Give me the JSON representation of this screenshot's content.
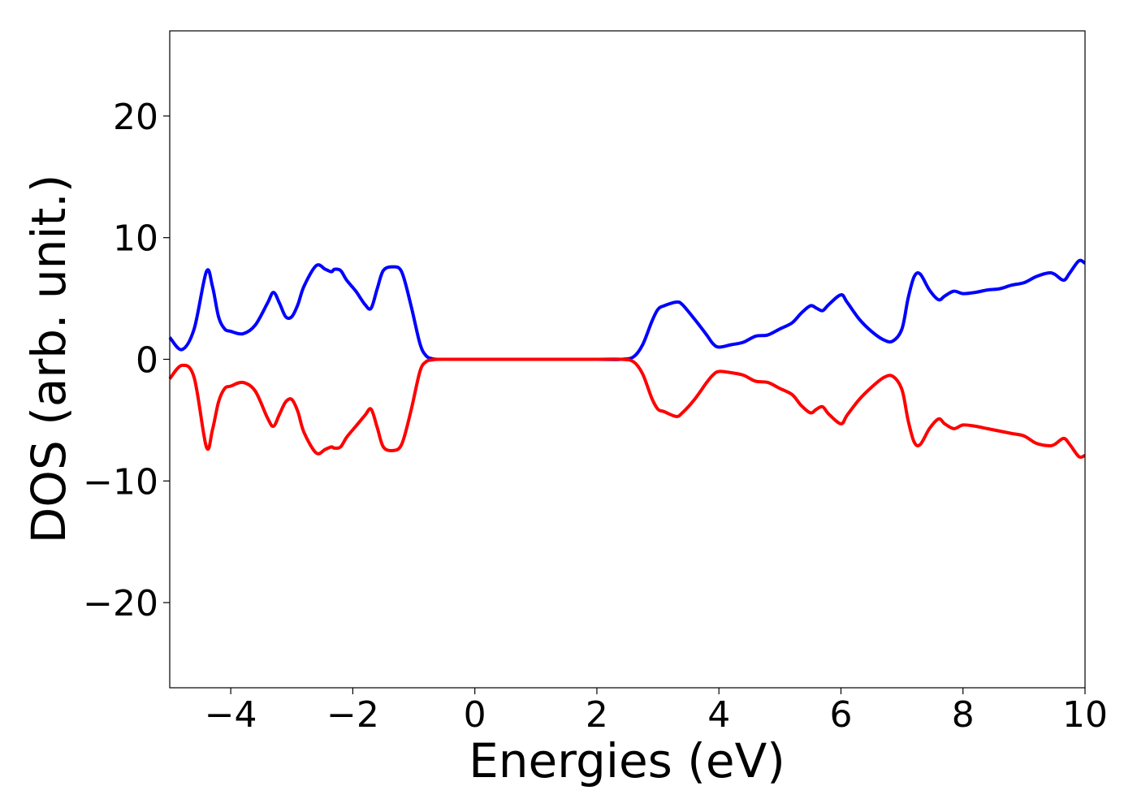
{
  "chart_data": {
    "type": "line",
    "title": "",
    "xlabel": "Energies (eV)",
    "ylabel": "DOS (arb. unit.)",
    "xlim": [
      -5,
      10
    ],
    "ylim": [
      -27,
      27
    ],
    "xticks": [
      -4,
      -2,
      0,
      2,
      4,
      6,
      8,
      10
    ],
    "xtick_labels": [
      "−4",
      "−2",
      "0",
      "2",
      "4",
      "6",
      "8",
      "10"
    ],
    "yticks": [
      -20,
      -10,
      0,
      10,
      20
    ],
    "ytick_labels": [
      "−20",
      "−10",
      "0",
      "10",
      "20"
    ],
    "grid": false,
    "legend": "none",
    "series": [
      {
        "color": "#0000ff",
        "x": [
          -5.0,
          -4.8,
          -4.6,
          -4.4,
          -4.3,
          -4.2,
          -4.1,
          -4.0,
          -3.8,
          -3.6,
          -3.4,
          -3.3,
          -3.2,
          -3.1,
          -3.0,
          -2.9,
          -2.8,
          -2.6,
          -2.45,
          -2.35,
          -2.3,
          -2.2,
          -2.1,
          -1.95,
          -1.8,
          -1.7,
          -1.6,
          -1.5,
          -1.35,
          -1.2,
          -1.05,
          -0.9,
          -0.8,
          -0.7,
          -0.6,
          -0.5,
          -0.4,
          0.0,
          0.5,
          1.0,
          1.5,
          2.0,
          2.4,
          2.6,
          2.75,
          2.9,
          3.0,
          3.1,
          3.3,
          3.4,
          3.6,
          3.8,
          3.9,
          4.0,
          4.2,
          4.4,
          4.6,
          4.8,
          5.0,
          5.2,
          5.35,
          5.5,
          5.6,
          5.7,
          5.8,
          6.0,
          6.1,
          6.3,
          6.5,
          6.7,
          6.85,
          7.0,
          7.1,
          7.2,
          7.3,
          7.45,
          7.6,
          7.7,
          7.85,
          8.0,
          8.2,
          8.4,
          8.6,
          8.8,
          9.0,
          9.2,
          9.4,
          9.5,
          9.65,
          9.75,
          9.9,
          10.0
        ],
        "y": [
          1.8,
          0.8,
          2.5,
          7.2,
          6.0,
          3.5,
          2.5,
          2.3,
          2.1,
          2.8,
          4.6,
          5.5,
          4.6,
          3.5,
          3.5,
          4.5,
          6.0,
          7.7,
          7.4,
          7.2,
          7.4,
          7.3,
          6.5,
          5.6,
          4.5,
          4.2,
          5.8,
          7.3,
          7.6,
          7.2,
          4.5,
          1.3,
          0.3,
          0.05,
          0.0,
          0.0,
          0.0,
          0.0,
          0.0,
          0.0,
          0.0,
          0.0,
          0.0,
          0.2,
          1.2,
          3.1,
          4.1,
          4.4,
          4.7,
          4.5,
          3.3,
          2.0,
          1.3,
          1.0,
          1.2,
          1.4,
          1.9,
          2.0,
          2.5,
          3.0,
          3.8,
          4.4,
          4.2,
          4.0,
          4.5,
          5.3,
          4.7,
          3.3,
          2.3,
          1.6,
          1.5,
          2.5,
          5.0,
          6.8,
          7.0,
          5.7,
          4.9,
          5.2,
          5.6,
          5.4,
          5.5,
          5.7,
          5.8,
          6.1,
          6.3,
          6.8,
          7.1,
          7.0,
          6.5,
          7.1,
          8.1,
          7.9
        ]
      },
      {
        "color": "#ff0000",
        "x": [
          -5.0,
          -4.8,
          -4.6,
          -4.4,
          -4.3,
          -4.2,
          -4.1,
          -4.0,
          -3.8,
          -3.6,
          -3.4,
          -3.3,
          -3.2,
          -3.1,
          -3.0,
          -2.9,
          -2.8,
          -2.6,
          -2.45,
          -2.35,
          -2.3,
          -2.2,
          -2.1,
          -1.95,
          -1.8,
          -1.7,
          -1.6,
          -1.5,
          -1.35,
          -1.2,
          -1.05,
          -0.9,
          -0.8,
          -0.7,
          -0.6,
          -0.5,
          -0.4,
          0.0,
          0.5,
          1.0,
          1.5,
          2.0,
          2.4,
          2.6,
          2.75,
          2.9,
          3.0,
          3.1,
          3.3,
          3.4,
          3.6,
          3.8,
          3.9,
          4.0,
          4.2,
          4.4,
          4.6,
          4.8,
          5.0,
          5.2,
          5.35,
          5.5,
          5.6,
          5.7,
          5.8,
          6.0,
          6.1,
          6.3,
          6.5,
          6.7,
          6.85,
          7.0,
          7.1,
          7.2,
          7.3,
          7.45,
          7.6,
          7.7,
          7.85,
          8.0,
          8.2,
          8.4,
          8.6,
          8.8,
          9.0,
          9.2,
          9.4,
          9.5,
          9.65,
          9.75,
          9.9,
          10.0
        ],
        "y": [
          -1.6,
          -0.5,
          -1.5,
          -7.2,
          -5.8,
          -3.5,
          -2.4,
          -2.2,
          -1.9,
          -2.6,
          -4.8,
          -5.5,
          -4.5,
          -3.5,
          -3.3,
          -4.3,
          -6.0,
          -7.7,
          -7.4,
          -7.2,
          -7.3,
          -7.2,
          -6.4,
          -5.5,
          -4.6,
          -4.1,
          -5.6,
          -7.2,
          -7.5,
          -7.0,
          -4.3,
          -1.0,
          -0.2,
          -0.05,
          0.0,
          0.0,
          0.0,
          0.0,
          0.0,
          0.0,
          0.0,
          0.0,
          0.0,
          -0.2,
          -1.2,
          -3.2,
          -4.1,
          -4.3,
          -4.7,
          -4.4,
          -3.3,
          -1.9,
          -1.3,
          -1.0,
          -1.1,
          -1.3,
          -1.8,
          -1.9,
          -2.4,
          -2.9,
          -3.8,
          -4.4,
          -4.1,
          -3.9,
          -4.5,
          -5.3,
          -4.6,
          -3.3,
          -2.3,
          -1.5,
          -1.4,
          -2.5,
          -5.0,
          -6.8,
          -7.0,
          -5.7,
          -4.9,
          -5.3,
          -5.7,
          -5.4,
          -5.5,
          -5.7,
          -5.9,
          -6.1,
          -6.3,
          -6.9,
          -7.1,
          -7.0,
          -6.5,
          -7.0,
          -8.0,
          -7.9
        ]
      }
    ]
  }
}
